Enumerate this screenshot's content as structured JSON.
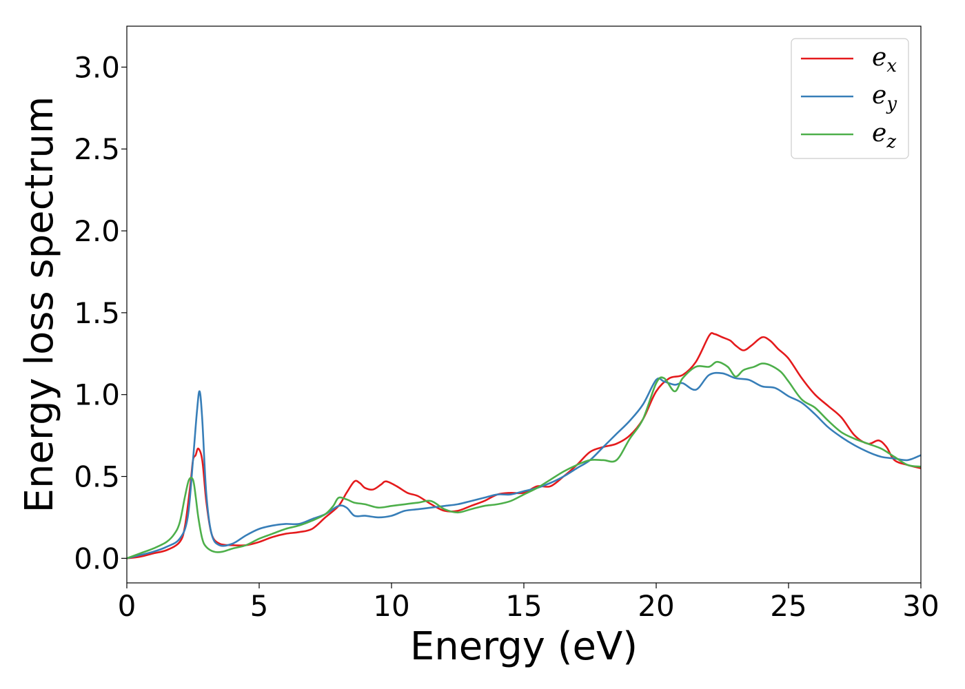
{
  "chart_data": {
    "type": "line",
    "xlabel": "Energy (eV)",
    "ylabel": "Energy loss spectrum",
    "xlim": [
      0,
      30
    ],
    "ylim": [
      -0.15,
      3.25
    ],
    "xticks": [
      "0",
      "5",
      "10",
      "15",
      "20",
      "25",
      "30"
    ],
    "yticks": [
      "0.0",
      "0.5",
      "1.0",
      "1.5",
      "2.0",
      "2.5",
      "3.0"
    ],
    "xtick_values": [
      0,
      5,
      10,
      15,
      20,
      25,
      30
    ],
    "ytick_values": [
      0.0,
      0.5,
      1.0,
      1.5,
      2.0,
      2.5,
      3.0
    ],
    "grid": false,
    "legend_position": "top-right",
    "series": [
      {
        "name": "e",
        "subscript": "x",
        "color": "#e41a1c",
        "x": [
          0,
          0.5,
          1.0,
          1.5,
          2.0,
          2.2,
          2.4,
          2.5,
          2.6,
          2.7,
          2.85,
          3.0,
          3.2,
          3.5,
          4.0,
          4.5,
          5.0,
          5.5,
          6.0,
          6.5,
          7.0,
          7.5,
          8.0,
          8.3,
          8.6,
          8.8,
          9.0,
          9.3,
          9.6,
          9.8,
          10.2,
          10.6,
          11.0,
          11.5,
          12.0,
          12.5,
          13.0,
          13.5,
          14.0,
          14.5,
          15.0,
          15.5,
          16.0,
          16.5,
          17.0,
          17.5,
          18.0,
          18.5,
          19.0,
          19.5,
          20.0,
          20.5,
          21.0,
          21.5,
          22.0,
          22.2,
          22.5,
          22.8,
          23.0,
          23.3,
          23.6,
          24.0,
          24.3,
          24.6,
          25.0,
          25.5,
          26.0,
          26.5,
          27.0,
          27.5,
          28.0,
          28.4,
          28.7,
          29.0,
          29.5,
          30.0
        ],
        "values": [
          0.0,
          0.01,
          0.03,
          0.05,
          0.1,
          0.2,
          0.45,
          0.6,
          0.63,
          0.67,
          0.6,
          0.35,
          0.15,
          0.09,
          0.08,
          0.08,
          0.1,
          0.13,
          0.15,
          0.16,
          0.18,
          0.25,
          0.32,
          0.4,
          0.47,
          0.46,
          0.43,
          0.42,
          0.45,
          0.47,
          0.44,
          0.4,
          0.38,
          0.33,
          0.29,
          0.29,
          0.32,
          0.35,
          0.39,
          0.4,
          0.4,
          0.44,
          0.44,
          0.5,
          0.57,
          0.65,
          0.68,
          0.7,
          0.75,
          0.85,
          1.02,
          1.1,
          1.12,
          1.2,
          1.36,
          1.37,
          1.35,
          1.33,
          1.3,
          1.27,
          1.3,
          1.35,
          1.33,
          1.28,
          1.22,
          1.1,
          1.0,
          0.93,
          0.86,
          0.75,
          0.7,
          0.72,
          0.68,
          0.6,
          0.57,
          0.55
        ]
      },
      {
        "name": "e",
        "subscript": "y",
        "color": "#377eb8",
        "x": [
          0,
          0.5,
          1.0,
          1.5,
          2.0,
          2.3,
          2.5,
          2.65,
          2.75,
          2.85,
          3.0,
          3.2,
          3.5,
          4.0,
          4.5,
          5.0,
          5.5,
          6.0,
          6.5,
          7.0,
          7.5,
          8.0,
          8.3,
          8.6,
          9.0,
          9.5,
          10.0,
          10.5,
          11.0,
          11.5,
          12.0,
          12.5,
          13.0,
          13.5,
          14.0,
          14.5,
          15.0,
          15.5,
          16.0,
          16.5,
          17.0,
          17.5,
          18.0,
          18.5,
          19.0,
          19.5,
          20.0,
          20.3,
          20.7,
          21.0,
          21.5,
          22.0,
          22.5,
          23.0,
          23.5,
          24.0,
          24.5,
          25.0,
          25.5,
          26.0,
          26.5,
          27.0,
          27.5,
          28.0,
          28.5,
          29.0,
          29.5,
          30.0
        ],
        "values": [
          0.0,
          0.02,
          0.04,
          0.07,
          0.12,
          0.25,
          0.6,
          0.9,
          1.02,
          0.85,
          0.4,
          0.15,
          0.08,
          0.09,
          0.14,
          0.18,
          0.2,
          0.21,
          0.21,
          0.24,
          0.27,
          0.32,
          0.31,
          0.26,
          0.26,
          0.25,
          0.26,
          0.29,
          0.3,
          0.31,
          0.32,
          0.33,
          0.35,
          0.37,
          0.39,
          0.39,
          0.41,
          0.43,
          0.46,
          0.5,
          0.55,
          0.6,
          0.68,
          0.76,
          0.84,
          0.94,
          1.09,
          1.08,
          1.06,
          1.07,
          1.03,
          1.12,
          1.13,
          1.1,
          1.09,
          1.05,
          1.04,
          0.99,
          0.95,
          0.88,
          0.8,
          0.74,
          0.69,
          0.65,
          0.62,
          0.61,
          0.6,
          0.63
        ]
      },
      {
        "name": "e",
        "subscript": "z",
        "color": "#4daf4a",
        "x": [
          0,
          0.5,
          1.0,
          1.5,
          1.8,
          2.0,
          2.2,
          2.35,
          2.5,
          2.6,
          2.7,
          2.85,
          3.0,
          3.3,
          3.6,
          4.0,
          4.5,
          5.0,
          5.5,
          6.0,
          6.5,
          7.0,
          7.5,
          7.8,
          8.0,
          8.3,
          8.6,
          9.0,
          9.5,
          10.0,
          10.5,
          11.0,
          11.5,
          12.0,
          12.5,
          13.0,
          13.5,
          14.0,
          14.5,
          15.0,
          15.5,
          16.0,
          16.5,
          17.0,
          17.5,
          18.0,
          18.5,
          19.0,
          19.5,
          20.0,
          20.3,
          20.7,
          21.0,
          21.5,
          22.0,
          22.3,
          22.7,
          23.0,
          23.3,
          23.7,
          24.0,
          24.3,
          24.7,
          25.0,
          25.5,
          26.0,
          26.5,
          27.0,
          27.5,
          28.0,
          28.5,
          29.0,
          29.5,
          30.0
        ],
        "values": [
          0.0,
          0.03,
          0.06,
          0.1,
          0.15,
          0.22,
          0.38,
          0.48,
          0.48,
          0.38,
          0.25,
          0.12,
          0.07,
          0.04,
          0.04,
          0.06,
          0.08,
          0.12,
          0.15,
          0.18,
          0.2,
          0.23,
          0.27,
          0.32,
          0.37,
          0.36,
          0.34,
          0.33,
          0.31,
          0.32,
          0.33,
          0.34,
          0.35,
          0.3,
          0.28,
          0.3,
          0.32,
          0.33,
          0.35,
          0.39,
          0.43,
          0.48,
          0.53,
          0.57,
          0.6,
          0.6,
          0.6,
          0.73,
          0.85,
          1.07,
          1.1,
          1.02,
          1.1,
          1.17,
          1.17,
          1.2,
          1.17,
          1.11,
          1.15,
          1.17,
          1.19,
          1.18,
          1.14,
          1.08,
          0.97,
          0.92,
          0.84,
          0.77,
          0.73,
          0.7,
          0.67,
          0.62,
          0.57,
          0.56
        ]
      }
    ]
  }
}
